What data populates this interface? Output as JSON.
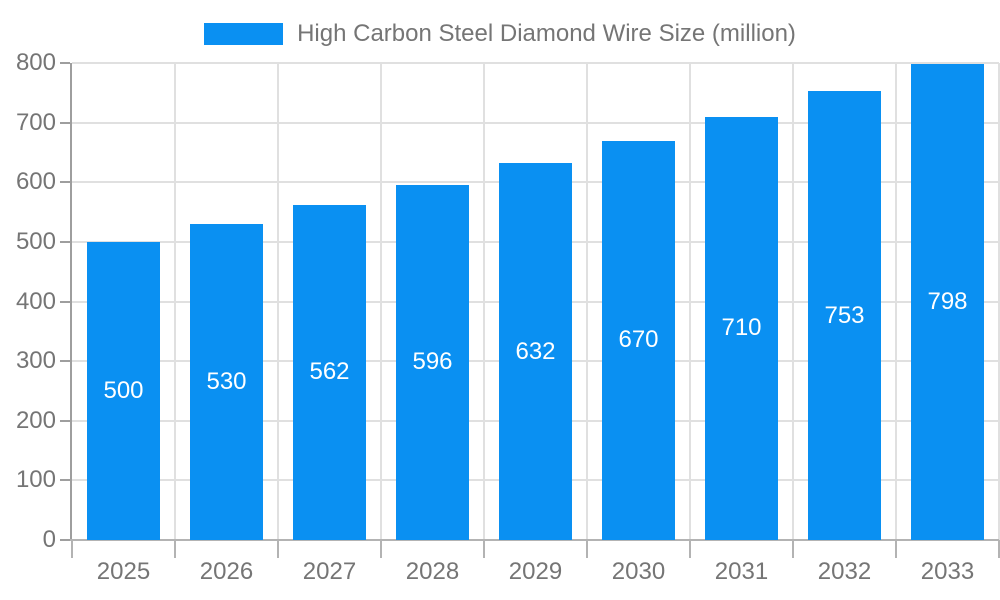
{
  "chart_data": {
    "type": "bar",
    "title": "High Carbon Steel Diamond Wire Size (million)",
    "categories": [
      "2025",
      "2026",
      "2027",
      "2028",
      "2029",
      "2030",
      "2031",
      "2032",
      "2033"
    ],
    "values": [
      500,
      530,
      562,
      596,
      632,
      670,
      710,
      753,
      798
    ],
    "series": [
      {
        "name": "High Carbon Steel Diamond Wire Size (million)",
        "values": [
          500,
          530,
          562,
          596,
          632,
          670,
          710,
          753,
          798
        ]
      }
    ],
    "xlabel": "",
    "ylabel": "",
    "ylim": [
      0,
      800
    ],
    "ytick_step": 100,
    "yticks": [
      "0",
      "100",
      "200",
      "300",
      "400",
      "500",
      "600",
      "700",
      "800"
    ],
    "grid": true,
    "legend_position": "top-center",
    "value_labels": "inside-center",
    "colors": {
      "bar": "#0a90f2",
      "grid": "#e0e0e0",
      "y_axis": "#9e9e9e",
      "x_axis": "#b3b3b3",
      "tick_text": "#757575",
      "value_text": "#ffffff",
      "background": "#ffffff"
    }
  }
}
